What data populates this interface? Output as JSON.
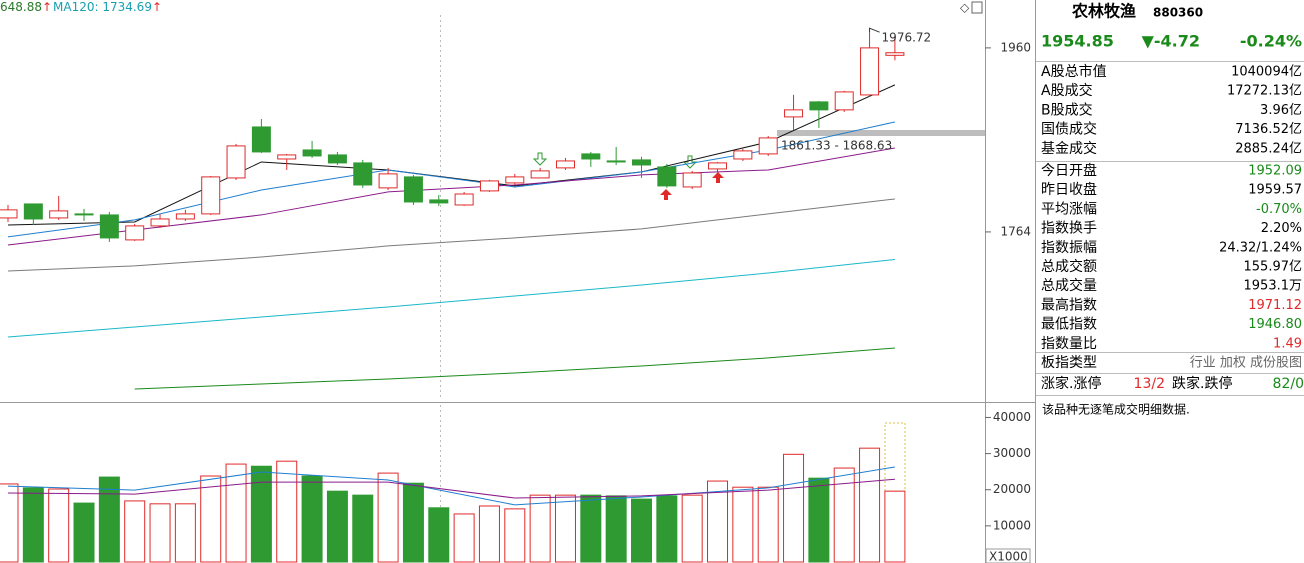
{
  "price_chart": {
    "header_labels": [
      {
        "text": "648.88",
        "arrow": "↑",
        "color": "#2a7a2a"
      },
      {
        "text": "MA120: 1734.69",
        "arrow": "↑",
        "color": "#1a9fb0"
      }
    ],
    "ylim": [
      1585,
      2011
    ],
    "yticks": [
      1764,
      1960
    ],
    "up_color": "#e02a2a",
    "down_color": "#2f9a32",
    "candles": [
      {
        "open": 1778.9,
        "high": 1792.7,
        "low": 1774.6,
        "close": 1787.5
      },
      {
        "open": 1793.8,
        "high": 1793.8,
        "low": 1771.4,
        "close": 1777.8
      },
      {
        "open": 1778.9,
        "high": 1802.3,
        "low": 1776.8,
        "close": 1786.4
      },
      {
        "open": 1783.2,
        "high": 1788.5,
        "low": 1775.7,
        "close": 1782.1
      },
      {
        "open": 1782.1,
        "high": 1785.3,
        "low": 1753.3,
        "close": 1757.6
      },
      {
        "open": 1755.5,
        "high": 1772.5,
        "low": 1754.4,
        "close": 1770.4
      },
      {
        "open": 1770.4,
        "high": 1783.2,
        "low": 1768.2,
        "close": 1777.8
      },
      {
        "open": 1777.8,
        "high": 1787.5,
        "low": 1775.7,
        "close": 1783.2
      },
      {
        "open": 1783.2,
        "high": 1823.6,
        "low": 1782.1,
        "close": 1822.6
      },
      {
        "open": 1821.5,
        "high": 1857.7,
        "low": 1819.4,
        "close": 1855.6
      },
      {
        "open": 1875.8,
        "high": 1884.3,
        "low": 1848.1,
        "close": 1849.2
      },
      {
        "open": 1841.7,
        "high": 1847.1,
        "low": 1830.0,
        "close": 1846.0
      },
      {
        "open": 1851.3,
        "high": 1860.9,
        "low": 1842.8,
        "close": 1844.9
      },
      {
        "open": 1846.0,
        "high": 1849.2,
        "low": 1835.3,
        "close": 1837.5
      },
      {
        "open": 1837.5,
        "high": 1840.7,
        "low": 1810.9,
        "close": 1814.0
      },
      {
        "open": 1810.9,
        "high": 1832.2,
        "low": 1808.7,
        "close": 1825.8
      },
      {
        "open": 1822.6,
        "high": 1824.7,
        "low": 1792.7,
        "close": 1795.9
      },
      {
        "open": 1798.1,
        "high": 1803.4,
        "low": 1791.7,
        "close": 1794.9
      },
      {
        "open": 1792.7,
        "high": 1806.6,
        "low": 1791.7,
        "close": 1804.4
      },
      {
        "open": 1807.7,
        "high": 1819.4,
        "low": 1806.6,
        "close": 1818.3
      },
      {
        "open": 1816.2,
        "high": 1825.8,
        "low": 1814.0,
        "close": 1822.6
      },
      {
        "open": 1821.5,
        "high": 1832.2,
        "low": 1821.5,
        "close": 1829.0
      },
      {
        "open": 1832.2,
        "high": 1842.8,
        "low": 1830.0,
        "close": 1839.6
      },
      {
        "open": 1847.1,
        "high": 1849.2,
        "low": 1833.2,
        "close": 1841.7
      },
      {
        "open": 1839.6,
        "high": 1854.5,
        "low": 1835.3,
        "close": 1838.5
      },
      {
        "open": 1840.7,
        "high": 1843.9,
        "low": 1821.5,
        "close": 1835.3
      },
      {
        "open": 1833.2,
        "high": 1836.4,
        "low": 1810.9,
        "close": 1813.0
      },
      {
        "open": 1811.9,
        "high": 1829.0,
        "low": 1809.8,
        "close": 1826.8
      },
      {
        "open": 1831.1,
        "high": 1838.5,
        "low": 1827.9,
        "close": 1837.5
      },
      {
        "open": 1841.7,
        "high": 1852.4,
        "low": 1839.6,
        "close": 1850.3
      },
      {
        "open": 1847.1,
        "high": 1866.2,
        "low": 1844.9,
        "close": 1864.1
      },
      {
        "open": 1886.5,
        "high": 1910.0,
        "low": 1872.6,
        "close": 1894.0
      },
      {
        "open": 1902.5,
        "high": 1903.5,
        "low": 1874.8,
        "close": 1894.0
      },
      {
        "open": 1894.0,
        "high": 1914.2,
        "low": 1891.8,
        "close": 1913.1
      },
      {
        "open": 1909.9,
        "high": 1976.72,
        "low": 1907.8,
        "close": 1960.0
      },
      {
        "open": 1952.09,
        "high": 1971.12,
        "low": 1946.8,
        "close": 1954.85
      }
    ],
    "ma_x": [
      0,
      5,
      10,
      15,
      20,
      25,
      30,
      35
    ],
    "ma_series": [
      {
        "color": "#111111",
        "values": [
          1771.4,
          1774.6,
          1838.5,
          1830.0,
          1813.0,
          1827.9,
          1859.8,
          1920.6
        ]
      },
      {
        "color": "#1f7fd0",
        "values": [
          1758.7,
          1776.8,
          1808.7,
          1830.0,
          1811.9,
          1827.9,
          1851.3,
          1881.1
        ]
      },
      {
        "color": "#8a1a8a",
        "values": [
          1750.1,
          1766.1,
          1782.1,
          1806.6,
          1814.0,
          1824.7,
          1830.0,
          1853.4
        ]
      },
      {
        "color": "#7a7a7a",
        "values": [
          1722.4,
          1727.8,
          1737.3,
          1749.1,
          1757.6,
          1767.2,
          1783.2,
          1799.1
        ]
      },
      {
        "color": "#1ab8c8",
        "values": [
          1652.1,
          1662.8,
          1673.4,
          1684.1,
          1695.8,
          1707.5,
          1720.3,
          1734.69
        ]
      },
      {
        "color": "#1a8a1a",
        "values": [
          null,
          1596.7,
          1602.1,
          1607.4,
          1613.8,
          1621.2,
          1629.8,
          1640.4
        ]
      }
    ],
    "high_label": "1976.72",
    "range_label": "1861.33 - 1868.63"
  },
  "volume_chart": {
    "ylim": [
      0,
      44000
    ],
    "yticks": [
      10000,
      20000,
      30000,
      40000
    ],
    "unit": "X1000",
    "values": [
      21600,
      20500,
      20200,
      16300,
      23500,
      16900,
      16100,
      16100,
      23800,
      27100,
      26500,
      27900,
      23800,
      19600,
      18500,
      24600,
      21800,
      15000,
      13300,
      15500,
      14700,
      18500,
      18500,
      18500,
      18300,
      17400,
      18300,
      18500,
      22400,
      20700,
      20700,
      29800,
      23200,
      26000,
      31500,
      19600
    ],
    "ma_series": [
      {
        "color": "#1f7fd0",
        "values": [
          21000,
          19900,
          24900,
          22700,
          15800,
          18000,
          20500,
          26300
        ]
      },
      {
        "color": "#8a1a8a",
        "values": [
          19100,
          18800,
          22100,
          22100,
          17700,
          18300,
          19900,
          22900
        ]
      }
    ]
  },
  "quote_panel": {
    "name": "农林牧渔",
    "code": "880360",
    "price": "1954.85",
    "change": "▼-4.72",
    "change_pct": "-0.24%",
    "quote_color": "#1a8a1a",
    "rows": [
      {
        "label": "A股总市值",
        "value": "1040094亿"
      },
      {
        "label": "A股成交",
        "value": "17272.13亿"
      },
      {
        "label": "B股成交",
        "value": "3.96亿"
      },
      {
        "label": "国债成交",
        "value": "7136.52亿"
      },
      {
        "label": "基金成交",
        "value": "2885.24亿"
      },
      {
        "label": "今日开盘",
        "value": "1952.09",
        "color": "#1a8a1a"
      },
      {
        "label": "昨日收盘",
        "value": "1959.57"
      },
      {
        "label": "平均涨幅",
        "value": "-0.70%",
        "color": "#1a8a1a"
      },
      {
        "label": "指数换手",
        "value": "2.20%"
      },
      {
        "label": "指数振幅",
        "value": "24.32/1.24%"
      },
      {
        "label": "总成交额",
        "value": "155.97亿"
      },
      {
        "label": "总成交量",
        "value": "1953.1万"
      },
      {
        "label": "最高指数",
        "value": "1971.12",
        "color": "#e02a2a"
      },
      {
        "label": "最低指数",
        "value": "1946.80",
        "color": "#1a8a1a"
      },
      {
        "label": "指数量比",
        "value": "1.49",
        "color": "#e02a2a"
      },
      {
        "label": "板指类型",
        "value": "行业 加权 成份股图",
        "color": "#666666"
      }
    ],
    "breadth": {
      "up_label": "涨家.涨停",
      "up_value": "13/2",
      "down_label": "跌家.跌停",
      "down_value": "82/0",
      "up_color": "#e02a2a",
      "down_color": "#1a8a1a"
    },
    "note": "该品种无逐笔成交明细数据."
  }
}
